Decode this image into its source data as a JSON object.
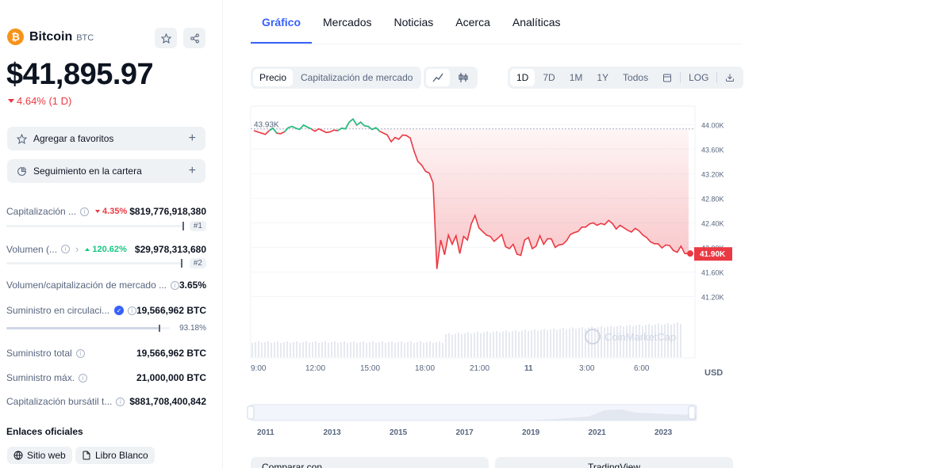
{
  "coin": {
    "name": "Bitcoin",
    "symbol": "BTC",
    "logo_glyph": "₿",
    "price": "$41,895.97",
    "change": "4.64% (1 D)"
  },
  "actions": {
    "favorites": "Agregar a favoritos",
    "portfolio": "Seguimiento en la cartera"
  },
  "stats": {
    "market_cap": {
      "label": "Capitalización ...",
      "change": "4.35%",
      "value": "$819,776,918,380",
      "rank": "#1"
    },
    "volume": {
      "label": "Volumen (...",
      "change": "120.62%",
      "value": "$29,978,313,680",
      "rank": "#2"
    },
    "vol_mcap": {
      "label": "Volumen/capitalización de mercado ...",
      "value": "3.65%"
    },
    "circ_supply": {
      "label": "Suministro en circulaci...",
      "value": "19,566,962 BTC",
      "percent": "93.18%",
      "fraction": 0.9318
    },
    "total_supply": {
      "label": "Suministro total",
      "value": "19,566,962 BTC"
    },
    "max_supply": {
      "label": "Suministro máx.",
      "value": "21,000,000 BTC"
    },
    "fdv": {
      "label": "Capitalización bursátil t...",
      "value": "$881,708,400,842"
    }
  },
  "links": {
    "title": "Enlaces oficiales",
    "website": "Sitio web",
    "whitepaper": "Libro Blanco"
  },
  "tabs": [
    "Gráfico",
    "Mercados",
    "Noticias",
    "Acerca",
    "Analíticas"
  ],
  "controls": {
    "price": "Precio",
    "market_cap": "Capitalización de mercado",
    "ranges": [
      "1D",
      "7D",
      "1M",
      "1Y",
      "Todos"
    ],
    "log": "LOG"
  },
  "chart_data": {
    "type": "line",
    "currency": "USD",
    "open_label": "43.93K",
    "current_label": "41.90K",
    "y_ticks": [
      "44.00K",
      "43.60K",
      "43.20K",
      "42.80K",
      "42.40K",
      "42.00K",
      "41.60K",
      "41.20K"
    ],
    "x_ticks": [
      "9:00",
      "12:00",
      "15:00",
      "18:00",
      "21:00",
      "11",
      "3:00",
      "6:00"
    ],
    "ylim": [
      41000,
      44300
    ],
    "series": [
      {
        "values": [
          43900,
          43880,
          43860,
          43840,
          43900,
          43940,
          43860,
          43850,
          43880,
          43950,
          43970,
          43940,
          43920,
          43990,
          43960,
          43930,
          43890,
          43930,
          43900,
          43870,
          43880,
          43910,
          43900,
          43940,
          43930,
          44040,
          44090,
          43990,
          44040,
          43980,
          43970,
          43920,
          43950,
          43890,
          43860,
          43830,
          43720,
          43790,
          43760,
          43830,
          43820,
          43780,
          43570,
          43400,
          43340,
          43240,
          43210,
          43050,
          41650,
          42120,
          41880,
          42200,
          42050,
          42190,
          41900,
          42180,
          42120,
          42380,
          42520,
          42320,
          42260,
          42200,
          42180,
          42100,
          42150,
          42210,
          42010,
          41980,
          42050,
          41890,
          41870,
          42120,
          42160,
          41980,
          42020,
          42190,
          42050,
          42140,
          42140,
          42000,
          42040,
          42050,
          42110,
          42210,
          42240,
          42260,
          42330,
          42330,
          42380,
          42400,
          42360,
          42390,
          42370,
          42440,
          42390,
          42300,
          42360,
          42320,
          42280,
          42250,
          42310,
          42270,
          42200,
          42160,
          42090,
          42060,
          42060,
          41990,
          42040,
          42030,
          41950,
          41920,
          42020,
          41900,
          41900
        ]
      }
    ],
    "x_range": [
      "2011",
      "2013",
      "2015",
      "2017",
      "2019",
      "2021",
      "2023"
    ],
    "watermark": "CoinMarketCap"
  },
  "bottom": {
    "compare": "Comparar con",
    "tradingview": "TradingView"
  },
  "colors": {
    "accent": "#3861fb",
    "down": "#ea3943",
    "up": "#16c784"
  }
}
